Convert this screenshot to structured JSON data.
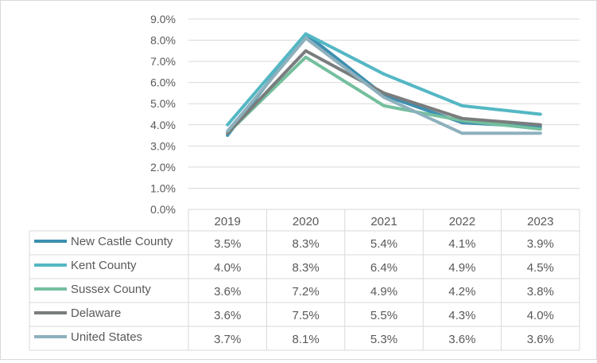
{
  "chart_data": {
    "type": "line",
    "categories": [
      "2019",
      "2020",
      "2021",
      "2022",
      "2023"
    ],
    "series": [
      {
        "name": "New Castle County",
        "values": [
          3.5,
          8.3,
          5.4,
          4.1,
          3.9
        ],
        "labels": [
          "3.5%",
          "8.3%",
          "5.4%",
          "4.1%",
          "3.9%"
        ],
        "color": "#3c8fb0"
      },
      {
        "name": "Kent County",
        "values": [
          4.0,
          8.3,
          6.4,
          4.9,
          4.5
        ],
        "labels": [
          "4.0%",
          "8.3%",
          "6.4%",
          "4.9%",
          "4.5%"
        ],
        "color": "#54b7c4"
      },
      {
        "name": "Sussex County",
        "values": [
          3.6,
          7.2,
          4.9,
          4.2,
          3.8
        ],
        "labels": [
          "3.6%",
          "7.2%",
          "4.9%",
          "4.2%",
          "3.8%"
        ],
        "color": "#74bf9e"
      },
      {
        "name": "Delaware",
        "values": [
          3.6,
          7.5,
          5.5,
          4.3,
          4.0
        ],
        "labels": [
          "3.6%",
          "7.5%",
          "5.5%",
          "4.3%",
          "4.0%"
        ],
        "color": "#7a7d7d"
      },
      {
        "name": "United States",
        "values": [
          3.7,
          8.1,
          5.3,
          3.6,
          3.6
        ],
        "labels": [
          "3.7%",
          "8.1%",
          "5.3%",
          "3.6%",
          "3.6%"
        ],
        "color": "#8db0bd"
      }
    ],
    "y_ticks": [
      "0.0%",
      "1.0%",
      "2.0%",
      "3.0%",
      "4.0%",
      "5.0%",
      "6.0%",
      "7.0%",
      "8.0%",
      "9.0%"
    ],
    "ylim": [
      0,
      9
    ],
    "grid": true,
    "legend": "data-table",
    "title": "",
    "xlabel": "",
    "ylabel": ""
  }
}
